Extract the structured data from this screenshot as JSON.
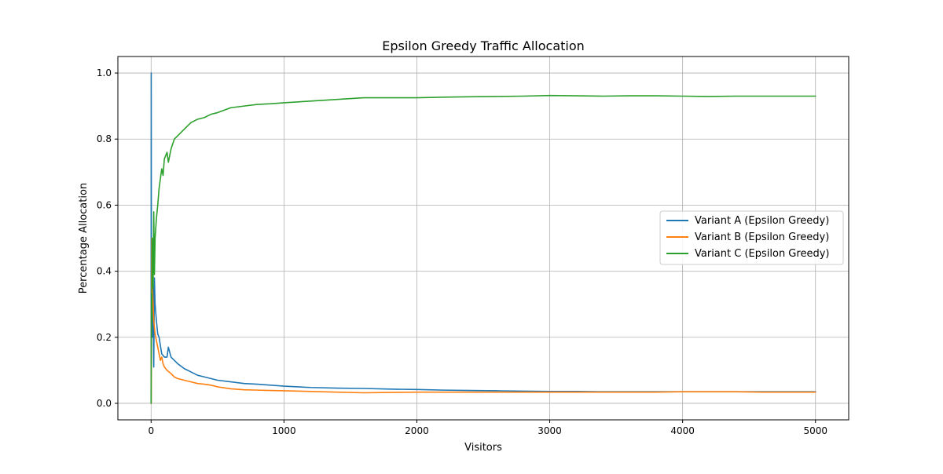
{
  "chart_data": {
    "type": "line",
    "title": "Epsilon Greedy Traffic Allocation",
    "xlabel": "Visitors",
    "ylabel": "Percentage Allocation",
    "xlim": [
      -250,
      5250
    ],
    "ylim": [
      -0.05,
      1.05
    ],
    "xticks": [
      0,
      1000,
      2000,
      3000,
      4000,
      5000
    ],
    "xtick_labels": [
      "0",
      "1000",
      "2000",
      "3000",
      "4000",
      "5000"
    ],
    "yticks": [
      0.0,
      0.2,
      0.4,
      0.6,
      0.8,
      1.0
    ],
    "ytick_labels": [
      "0.0",
      "0.2",
      "0.4",
      "0.6",
      "0.8",
      "1.0"
    ],
    "grid": true,
    "legend_position": "center-right",
    "series": [
      {
        "name": "Variant A (Epsilon Greedy)",
        "color": "#1f77b4",
        "x": [
          0,
          1,
          2,
          4,
          6,
          10,
          15,
          20,
          25,
          30,
          40,
          50,
          60,
          80,
          100,
          120,
          130,
          150,
          175,
          200,
          250,
          300,
          350,
          400,
          450,
          500,
          600,
          700,
          800,
          900,
          1000,
          1200,
          1400,
          1600,
          1800,
          2000,
          2200,
          2400,
          2600,
          2800,
          3000,
          3200,
          3400,
          3600,
          3800,
          4000,
          4200,
          4400,
          4600,
          4800,
          5000
        ],
        "values": [
          0.0,
          1.0,
          0.5,
          0.33,
          0.25,
          0.2,
          0.35,
          0.11,
          0.38,
          0.3,
          0.25,
          0.21,
          0.2,
          0.15,
          0.14,
          0.14,
          0.17,
          0.14,
          0.13,
          0.12,
          0.105,
          0.095,
          0.085,
          0.08,
          0.075,
          0.07,
          0.065,
          0.06,
          0.058,
          0.055,
          0.052,
          0.048,
          0.046,
          0.045,
          0.043,
          0.042,
          0.04,
          0.039,
          0.038,
          0.037,
          0.036,
          0.036,
          0.035,
          0.035,
          0.035,
          0.035,
          0.035,
          0.035,
          0.035,
          0.035,
          0.035
        ]
      },
      {
        "name": "Variant B (Epsilon Greedy)",
        "color": "#ff7f0e",
        "x": [
          0,
          1,
          3,
          5,
          8,
          10,
          15,
          20,
          25,
          30,
          40,
          50,
          60,
          70,
          80,
          90,
          100,
          120,
          150,
          175,
          200,
          250,
          300,
          350,
          400,
          450,
          500,
          600,
          700,
          800,
          900,
          1000,
          1200,
          1400,
          1600,
          1800,
          2000,
          2200,
          2400,
          2600,
          2800,
          3000,
          3200,
          3400,
          3600,
          3800,
          4000,
          4200,
          4400,
          4600,
          4800,
          5000
        ],
        "values": [
          0.0,
          0.0,
          0.33,
          0.5,
          0.4,
          0.35,
          0.3,
          0.25,
          0.23,
          0.21,
          0.19,
          0.17,
          0.15,
          0.13,
          0.14,
          0.12,
          0.11,
          0.1,
          0.09,
          0.08,
          0.075,
          0.07,
          0.065,
          0.06,
          0.058,
          0.055,
          0.05,
          0.044,
          0.041,
          0.04,
          0.039,
          0.038,
          0.036,
          0.034,
          0.032,
          0.033,
          0.034,
          0.034,
          0.034,
          0.034,
          0.034,
          0.034,
          0.034,
          0.034,
          0.034,
          0.034,
          0.035,
          0.035,
          0.035,
          0.034,
          0.034,
          0.034
        ]
      },
      {
        "name": "Variant C (Epsilon Greedy)",
        "color": "#2ca02c",
        "x": [
          0,
          3,
          5,
          8,
          10,
          15,
          20,
          25,
          30,
          40,
          50,
          60,
          70,
          80,
          90,
          100,
          120,
          130,
          150,
          175,
          200,
          250,
          300,
          350,
          400,
          450,
          500,
          600,
          700,
          800,
          900,
          1000,
          1200,
          1400,
          1600,
          1800,
          2000,
          2200,
          2400,
          2600,
          2800,
          3000,
          3200,
          3400,
          3600,
          3800,
          4000,
          4200,
          4400,
          4600,
          4800,
          5000
        ],
        "values": [
          0.0,
          0.33,
          0.25,
          0.5,
          0.45,
          0.35,
          0.58,
          0.39,
          0.5,
          0.56,
          0.6,
          0.65,
          0.68,
          0.71,
          0.69,
          0.74,
          0.76,
          0.73,
          0.77,
          0.8,
          0.81,
          0.83,
          0.85,
          0.86,
          0.865,
          0.875,
          0.88,
          0.895,
          0.9,
          0.905,
          0.907,
          0.91,
          0.915,
          0.92,
          0.925,
          0.925,
          0.925,
          0.927,
          0.928,
          0.929,
          0.93,
          0.932,
          0.931,
          0.93,
          0.931,
          0.931,
          0.93,
          0.929,
          0.93,
          0.93,
          0.93,
          0.93
        ]
      }
    ]
  }
}
